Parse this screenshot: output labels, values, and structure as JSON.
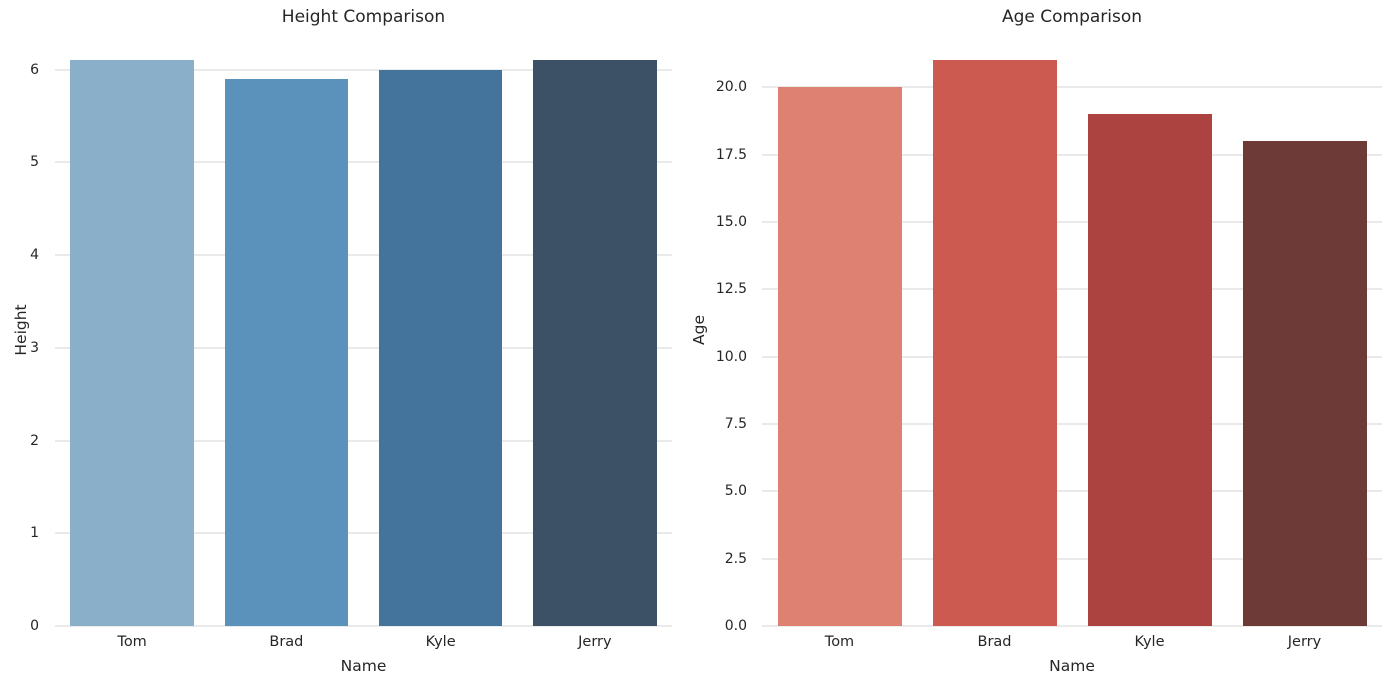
{
  "figure": {
    "background": "#ffffff",
    "text_color": "#262626",
    "grid_color": "#d4d4d4"
  },
  "chart_data": [
    {
      "type": "bar",
      "title": "Height Comparison",
      "xlabel": "Name",
      "ylabel": "Height",
      "categories": [
        "Tom",
        "Brad",
        "Kyle",
        "Jerry"
      ],
      "values": [
        6.1,
        5.9,
        6.0,
        6.1
      ],
      "colors": [
        "#8aafc9",
        "#5b92bc",
        "#44749b",
        "#3d5166"
      ],
      "yticks": [
        0,
        1,
        2,
        3,
        4,
        5,
        6
      ],
      "ytick_labels": [
        "0",
        "1",
        "2",
        "3",
        "4",
        "5",
        "6"
      ],
      "ylim": [
        0,
        6.405
      ],
      "grid": "horizontal",
      "grid_color": "#d4d4d4",
      "legend": "none",
      "bar_width_fraction": 0.8
    },
    {
      "type": "bar",
      "title": "Age Comparison",
      "xlabel": "Name",
      "ylabel": "Age",
      "categories": [
        "Tom",
        "Brad",
        "Kyle",
        "Jerry"
      ],
      "values": [
        20,
        21,
        19,
        18
      ],
      "colors": [
        "#df8172",
        "#cc5a50",
        "#ad4340",
        "#6e3a37"
      ],
      "yticks": [
        0,
        2.5,
        5,
        7.5,
        10,
        12.5,
        15,
        17.5,
        20
      ],
      "ytick_labels": [
        "0.0",
        "2.5",
        "5.0",
        "7.5",
        "10.0",
        "12.5",
        "15.0",
        "17.5",
        "20.0"
      ],
      "ylim": [
        0,
        22.05
      ],
      "grid": "horizontal",
      "grid_color": "#d4d4d4",
      "legend": "none",
      "bar_width_fraction": 0.8
    }
  ]
}
